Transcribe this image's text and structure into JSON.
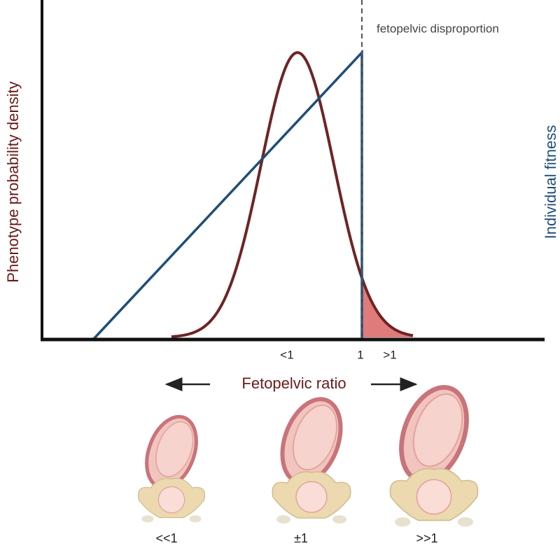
{
  "diagram": {
    "y_label_left": "Phenotype probability density",
    "y_label_right": "Individual fitness",
    "annotation": "fetopelvic disproportion",
    "x_ticks": [
      "<1",
      "1",
      ">1"
    ],
    "x_label": "Fetopelvic ratio",
    "illustrations": [
      {
        "label": "<<1"
      },
      {
        "label": "±1"
      },
      {
        "label": ">>1"
      }
    ]
  }
}
